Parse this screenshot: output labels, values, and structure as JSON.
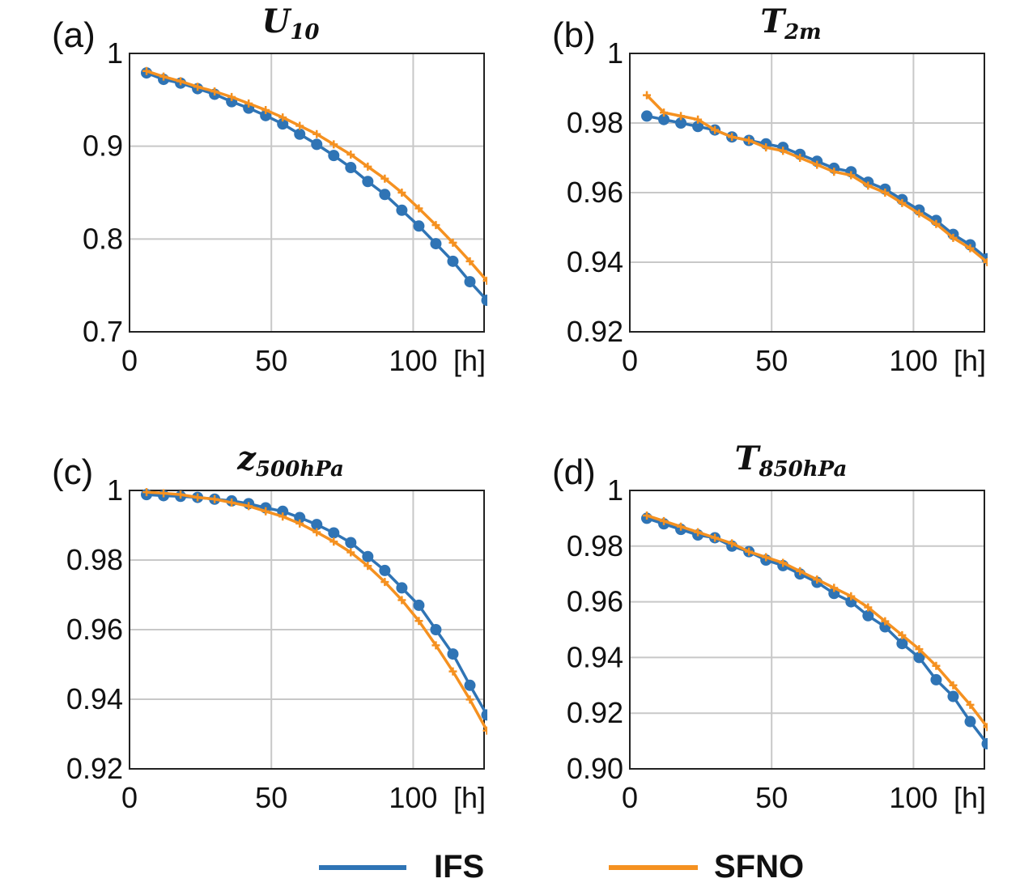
{
  "colors": {
    "IFS": "#2f74b5",
    "SFNO": "#f59120",
    "grid": "#c8c8c8",
    "axis": "#222222"
  },
  "legend": [
    {
      "name": "IFS",
      "color": "#2f74b5"
    },
    {
      "name": "SFNO",
      "color": "#f59120"
    }
  ],
  "chart_data": [
    {
      "type": "line",
      "panel_label": "(a)",
      "title_main": "U",
      "title_sub": "10",
      "xlim": [
        0,
        125
      ],
      "ylim": [
        0.7,
        1.0
      ],
      "xticks": [
        0,
        50,
        100
      ],
      "xtick_labels": [
        "0",
        "50",
        "100"
      ],
      "x_unit": "[h]",
      "yticks": [
        0.7,
        0.8,
        0.9,
        1.0
      ],
      "ytick_labels": [
        "0.7",
        "0.8",
        "0.9",
        "1"
      ],
      "x": [
        6,
        12,
        18,
        24,
        30,
        36,
        42,
        48,
        54,
        60,
        66,
        72,
        78,
        84,
        90,
        96,
        102,
        108,
        114,
        120,
        126
      ],
      "series": [
        {
          "name": "IFS",
          "marker": "circle",
          "values": [
            0.979,
            0.972,
            0.968,
            0.962,
            0.956,
            0.948,
            0.941,
            0.933,
            0.924,
            0.913,
            0.902,
            0.89,
            0.877,
            0.862,
            0.848,
            0.831,
            0.814,
            0.795,
            0.776,
            0.754,
            0.734
          ]
        },
        {
          "name": "SFNO",
          "marker": "plus",
          "values": [
            0.981,
            0.975,
            0.97,
            0.964,
            0.959,
            0.953,
            0.946,
            0.939,
            0.931,
            0.922,
            0.913,
            0.902,
            0.891,
            0.878,
            0.865,
            0.85,
            0.833,
            0.815,
            0.796,
            0.776,
            0.755
          ]
        }
      ]
    },
    {
      "type": "line",
      "panel_label": "(b)",
      "title_main": "T",
      "title_sub": "2m",
      "xlim": [
        0,
        125
      ],
      "ylim": [
        0.92,
        1.0
      ],
      "xticks": [
        0,
        50,
        100
      ],
      "xtick_labels": [
        "0",
        "50",
        "100"
      ],
      "x_unit": "[h]",
      "yticks": [
        0.92,
        0.94,
        0.96,
        0.98,
        1.0
      ],
      "ytick_labels": [
        "0.92",
        "0.94",
        "0.96",
        "0.98",
        "1"
      ],
      "x": [
        6,
        12,
        18,
        24,
        30,
        36,
        42,
        48,
        54,
        60,
        66,
        72,
        78,
        84,
        90,
        96,
        102,
        108,
        114,
        120,
        126
      ],
      "series": [
        {
          "name": "IFS",
          "marker": "circle",
          "values": [
            0.982,
            0.981,
            0.98,
            0.979,
            0.978,
            0.976,
            0.975,
            0.974,
            0.973,
            0.971,
            0.969,
            0.967,
            0.966,
            0.963,
            0.961,
            0.958,
            0.955,
            0.952,
            0.948,
            0.945,
            0.941
          ]
        },
        {
          "name": "SFNO",
          "marker": "plus",
          "values": [
            0.988,
            0.983,
            0.982,
            0.981,
            0.978,
            0.976,
            0.975,
            0.973,
            0.972,
            0.97,
            0.968,
            0.966,
            0.965,
            0.962,
            0.96,
            0.957,
            0.954,
            0.951,
            0.947,
            0.944,
            0.94
          ]
        }
      ]
    },
    {
      "type": "line",
      "panel_label": "(c)",
      "title_main": "z",
      "title_sub": "500hPa",
      "xlim": [
        0,
        125
      ],
      "ylim": [
        0.92,
        1.0
      ],
      "xticks": [
        0,
        50,
        100
      ],
      "xtick_labels": [
        "0",
        "50",
        "100"
      ],
      "x_unit": "[h]",
      "yticks": [
        0.92,
        0.94,
        0.96,
        0.98,
        1.0
      ],
      "ytick_labels": [
        "0.92",
        "0.94",
        "0.96",
        "0.98",
        "1"
      ],
      "x": [
        6,
        12,
        18,
        24,
        30,
        36,
        42,
        48,
        54,
        60,
        66,
        72,
        78,
        84,
        90,
        96,
        102,
        108,
        114,
        120,
        126
      ],
      "series": [
        {
          "name": "IFS",
          "marker": "circle",
          "values": [
            0.9988,
            0.9985,
            0.9983,
            0.998,
            0.9975,
            0.997,
            0.9962,
            0.995,
            0.994,
            0.9922,
            0.9902,
            0.9878,
            0.985,
            0.981,
            0.977,
            0.972,
            0.967,
            0.96,
            0.953,
            0.944,
            0.9355
          ]
        },
        {
          "name": "SFNO",
          "marker": "plus",
          "values": [
            0.9995,
            0.9992,
            0.9988,
            0.998,
            0.9975,
            0.9965,
            0.9955,
            0.994,
            0.9925,
            0.9905,
            0.988,
            0.9853,
            0.9822,
            0.9783,
            0.9737,
            0.9685,
            0.9625,
            0.9555,
            0.948,
            0.9399,
            0.931
          ]
        }
      ]
    },
    {
      "type": "line",
      "panel_label": "(d)",
      "title_main": "T",
      "title_sub": "850hPa",
      "xlim": [
        0,
        125
      ],
      "ylim": [
        0.9,
        1.0
      ],
      "xticks": [
        0,
        50,
        100
      ],
      "xtick_labels": [
        "0",
        "50",
        "100"
      ],
      "x_unit": "[h]",
      "yticks": [
        0.9,
        0.92,
        0.94,
        0.96,
        0.98,
        1.0
      ],
      "ytick_labels": [
        "0.90",
        "0.92",
        "0.94",
        "0.96",
        "0.98",
        "1"
      ],
      "x": [
        6,
        12,
        18,
        24,
        30,
        36,
        42,
        48,
        54,
        60,
        66,
        72,
        78,
        84,
        90,
        96,
        102,
        108,
        114,
        120,
        126
      ],
      "series": [
        {
          "name": "IFS",
          "marker": "circle",
          "values": [
            0.99,
            0.988,
            0.986,
            0.984,
            0.983,
            0.98,
            0.978,
            0.975,
            0.973,
            0.97,
            0.967,
            0.963,
            0.96,
            0.955,
            0.951,
            0.945,
            0.94,
            0.932,
            0.926,
            0.917,
            0.909
          ]
        },
        {
          "name": "SFNO",
          "marker": "plus",
          "values": [
            0.991,
            0.989,
            0.987,
            0.985,
            0.983,
            0.981,
            0.978,
            0.976,
            0.974,
            0.971,
            0.968,
            0.965,
            0.962,
            0.958,
            0.953,
            0.948,
            0.943,
            0.937,
            0.93,
            0.923,
            0.915
          ]
        }
      ]
    }
  ]
}
